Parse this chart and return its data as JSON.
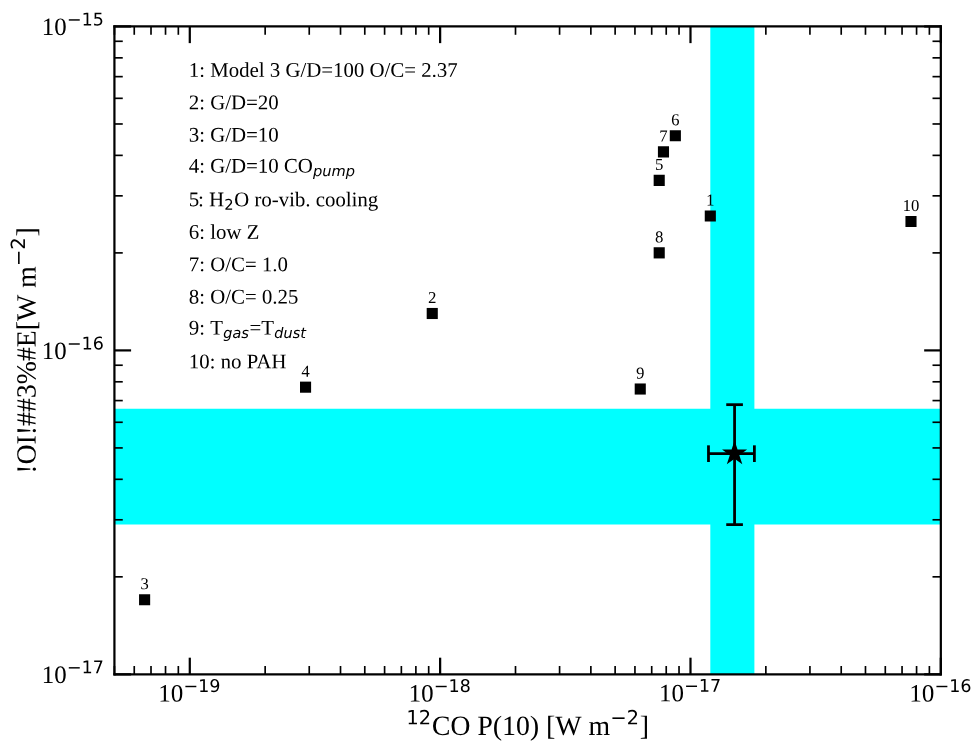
{
  "chart_data": {
    "type": "scatter",
    "log": "xy",
    "xlabel": "$^{12}$CO P(10) [W m$^{−2}$]",
    "ylabel": "!OI!##3%#E[W m$^{−2}$]",
    "xlim": [
      5e-20,
      1e-16
    ],
    "ylim": [
      1e-17,
      1e-15
    ],
    "xticks": [
      {
        "value": 1e-19,
        "label": "10$^{−19}$"
      },
      {
        "value": 1e-18,
        "label": "10$^{−18}$"
      },
      {
        "value": 1e-17,
        "label": "10$^{−17}$"
      },
      {
        "value": 1e-16,
        "label": "10$^{−16}$"
      }
    ],
    "yticks": [
      {
        "value": 1e-17,
        "label": "10$^{−17}$"
      },
      {
        "value": 1e-16,
        "label": "10$^{−16}$"
      },
      {
        "value": 1e-15,
        "label": "10$^{−15}$"
      }
    ],
    "grid": false,
    "bands": [
      {
        "axis": "x",
        "from": 1.2e-17,
        "to": 1.8e-17,
        "color": "#00ffff"
      },
      {
        "axis": "y",
        "from": 2.9e-17,
        "to": 6.6e-17,
        "color": "#00ffff"
      }
    ],
    "series": [
      {
        "color": "#000000",
        "marker": "square",
        "x": [
          1.2e-17,
          9.3e-19,
          6.6e-20,
          2.9e-19,
          7.5e-18,
          8.7e-18,
          7.8e-18,
          7.5e-18,
          6.3e-18,
          7.6e-17
        ],
        "values": [
          2.6e-16,
          1.3e-16,
          1.7e-17,
          7.7e-17,
          3.35e-16,
          4.6e-16,
          4.1e-16,
          2e-16,
          7.6e-17,
          2.5e-16
        ]
      },
      {
        "color": "#000000",
        "marker": "star",
        "x": [
          1.5e-17
        ],
        "values": [
          4.8e-17
        ],
        "errors": [
          [
            2.9e-17,
            6.8e-17
          ]
        ],
        "xerrors": [
          [
            1.18e-17,
            1.8e-17
          ]
        ]
      }
    ],
    "annotations": [
      {
        "text": "1",
        "x": 1.2e-17,
        "y": 2.6e-16
      },
      {
        "text": "2",
        "x": 9.3e-19,
        "y": 1.3e-16
      },
      {
        "text": "3",
        "x": 6.6e-20,
        "y": 1.7e-17
      },
      {
        "text": "4",
        "x": 2.9e-19,
        "y": 7.7e-17
      },
      {
        "text": "5",
        "x": 7.5e-18,
        "y": 3.35e-16
      },
      {
        "text": "6",
        "x": 8.7e-18,
        "y": 4.6e-16
      },
      {
        "text": "7",
        "x": 7.8e-18,
        "y": 4.1e-16
      },
      {
        "text": "8",
        "x": 7.5e-18,
        "y": 2e-16
      },
      {
        "text": "9",
        "x": 6.3e-18,
        "y": 7.6e-17
      },
      {
        "text": "10",
        "x": 7.6e-17,
        "y": 2.5e-16
      },
      "1: Model 3 G/D=100 O/C= 2.37",
      "2: G/D=20",
      "3: G/D=10",
      "4: G/D=10 CO$_{pump}$",
      "5: H$_{2}$O ro-vib. cooling",
      "6: low Z",
      "7: O/C= 1.0",
      "8: O/C= 0.25",
      "9: T$_{gas}$=T$_{dust}$",
      "10: no PAH"
    ]
  }
}
